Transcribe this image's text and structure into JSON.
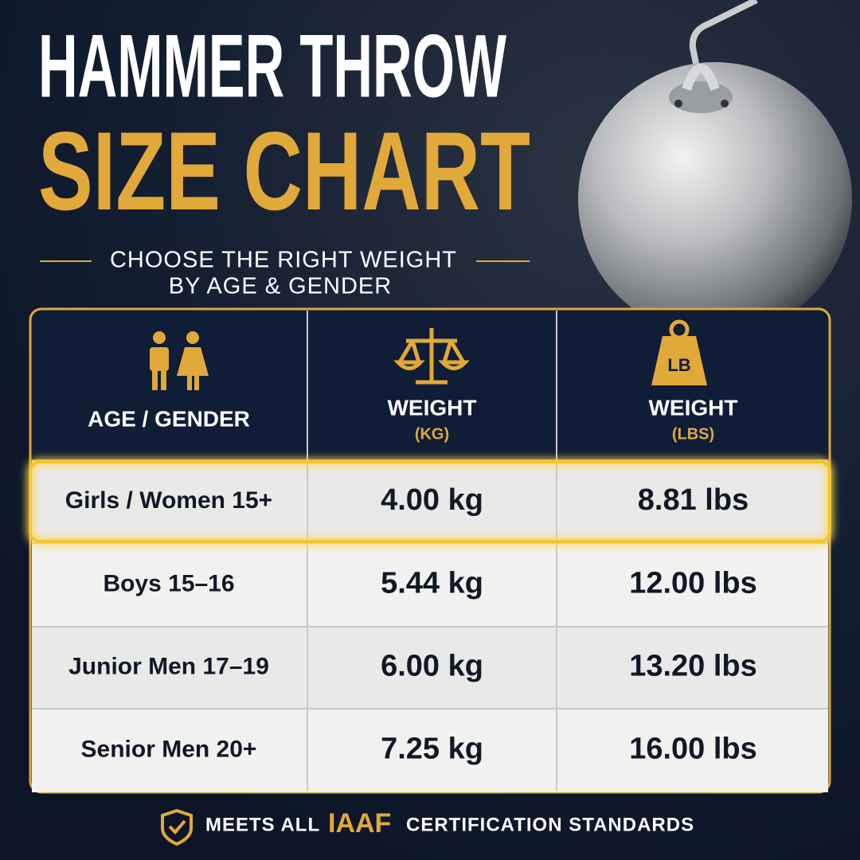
{
  "header": {
    "title_line1": "HAMMER THROW",
    "title_line2": "SIZE CHART",
    "subtitle_line1": "CHOOSE THE RIGHT WEIGHT",
    "subtitle_line2": "BY AGE & GENDER"
  },
  "table": {
    "headers": [
      {
        "label": "AGE / GENDER"
      },
      {
        "label": "WEIGHT",
        "unit": "(KG)"
      },
      {
        "label": "WEIGHT",
        "unit": "(LBS)",
        "icon_text": "LB"
      }
    ],
    "rows": [
      [
        "Girls / Women 15+",
        "4.00 kg",
        "8.81 lbs"
      ],
      [
        "Boys 15–16",
        "5.44 kg",
        "12.00 lbs"
      ],
      [
        "Junior Men 17–19",
        "6.00 kg",
        "13.20 lbs"
      ],
      [
        "Senior Men 20+",
        "7.25 kg",
        "16.00 lbs"
      ]
    ],
    "highlight_row": 0
  },
  "footer": {
    "text_before": "MEETS ALL",
    "emphasis": "IAAF",
    "text_after": "CERTIFICATION STANDARDS"
  }
}
